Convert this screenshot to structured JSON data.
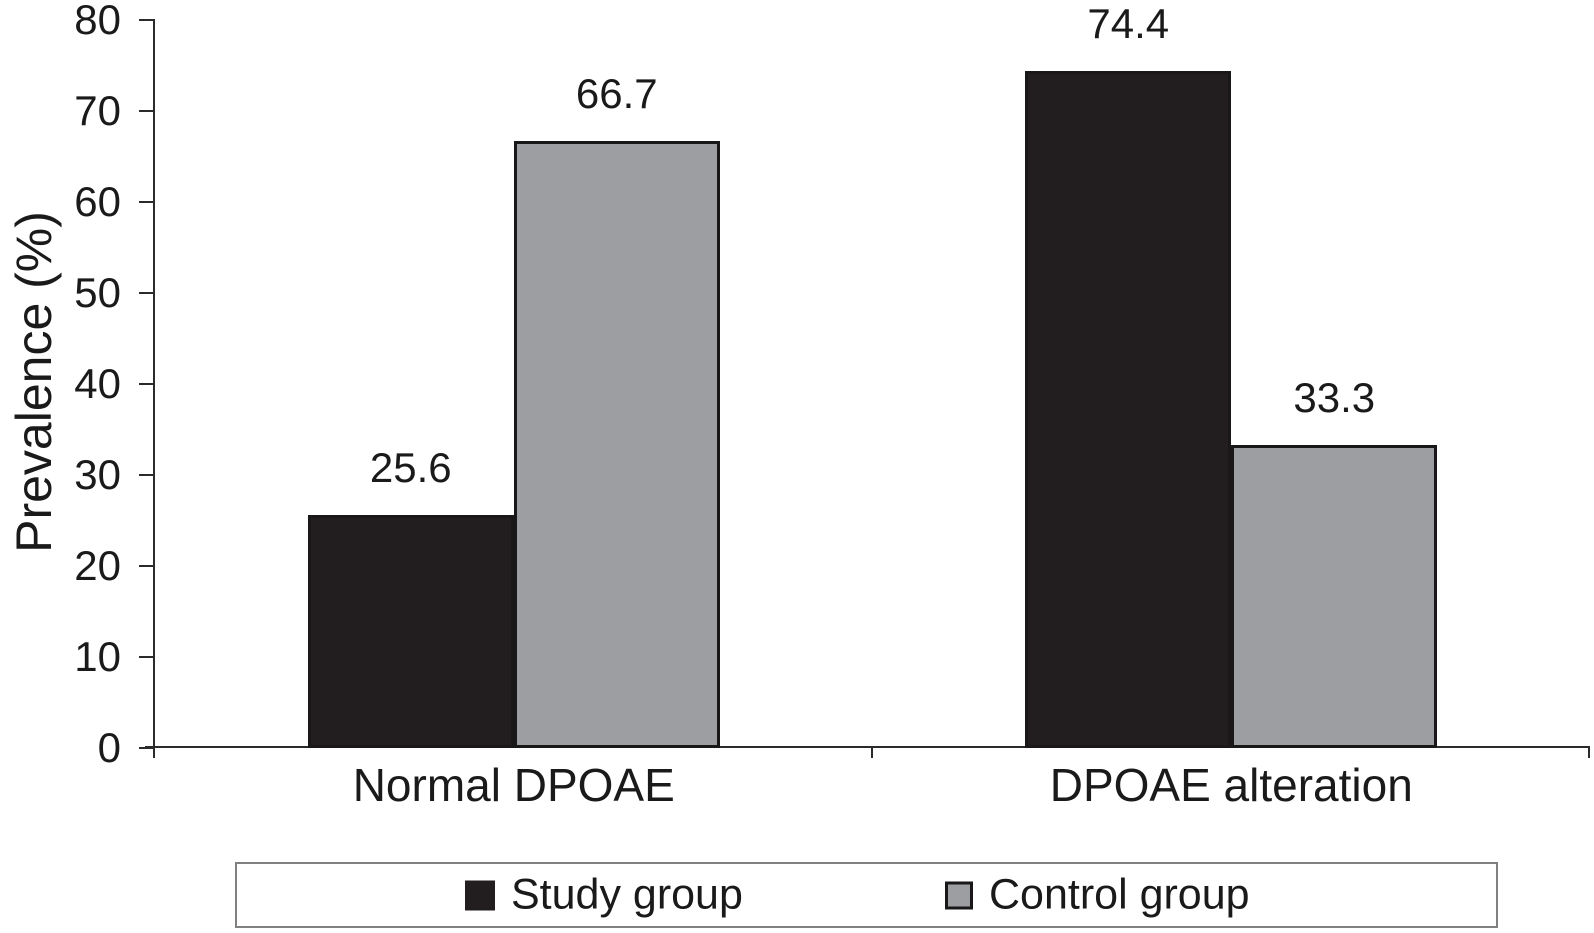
{
  "figure": {
    "background": "#ffffff"
  },
  "chart_data": {
    "type": "bar",
    "title": "",
    "xlabel": "",
    "ylabel": "Prevalence (%)",
    "ylim": [
      0,
      80
    ],
    "yticks": [
      0,
      10,
      20,
      30,
      40,
      50,
      60,
      70,
      80
    ],
    "grid": false,
    "legend_position": "bottom",
    "categories": [
      "Normal DPOAE",
      "DPOAE alteration"
    ],
    "series": [
      {
        "name": "Study group",
        "values": [
          25.6,
          74.4
        ],
        "labels": [
          "25.6",
          "74.4"
        ],
        "color": "#221e1f"
      },
      {
        "name": "Control group",
        "values": [
          66.7,
          33.3
        ],
        "labels": [
          "66.7",
          "33.3"
        ],
        "color": "#9c9ea1"
      }
    ],
    "bar_border_color": "#1a1718",
    "axis_color": "#2b2b2b",
    "text_color": "#1a1a1a"
  },
  "legend": {
    "border_color": "#808080",
    "items": [
      {
        "label": "Study group",
        "swatch_color": "#221e1f"
      },
      {
        "label": "Control group",
        "swatch_color": "#9c9ea1"
      }
    ]
  }
}
